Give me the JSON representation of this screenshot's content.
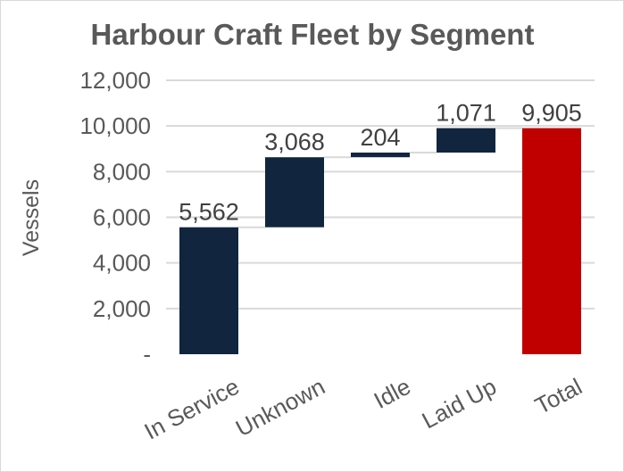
{
  "chart_data": {
    "type": "waterfall",
    "title": "Harbour Craft Fleet by Segment",
    "ylabel": "Vessels",
    "xlabel": "",
    "ylim": [
      0,
      12000
    ],
    "yticks": [
      0,
      2000,
      4000,
      6000,
      8000,
      10000,
      12000
    ],
    "ytick_labels": [
      "-",
      "2,000",
      "4,000",
      "6,000",
      "8,000",
      "10,000",
      "12,000"
    ],
    "grid": true,
    "categories": [
      "In Service",
      "Unknown",
      "Idle",
      "Laid Up",
      "Total"
    ],
    "values": [
      5562,
      3068,
      204,
      1071,
      9905
    ],
    "data_labels": [
      "5,562",
      "3,068",
      "204",
      "1,071",
      "9,905"
    ],
    "bars": [
      {
        "start": 0,
        "end": 5562
      },
      {
        "start": 5562,
        "end": 8630
      },
      {
        "start": 8630,
        "end": 8834
      },
      {
        "start": 8834,
        "end": 9905
      },
      {
        "start": 0,
        "end": 9905
      }
    ],
    "is_total": [
      false,
      false,
      false,
      false,
      true
    ],
    "colors": {
      "step": "#12253f",
      "total": "#c00000",
      "grid": "#d9d9d9",
      "connector": "#d9d9d9",
      "text": "#595959"
    }
  }
}
